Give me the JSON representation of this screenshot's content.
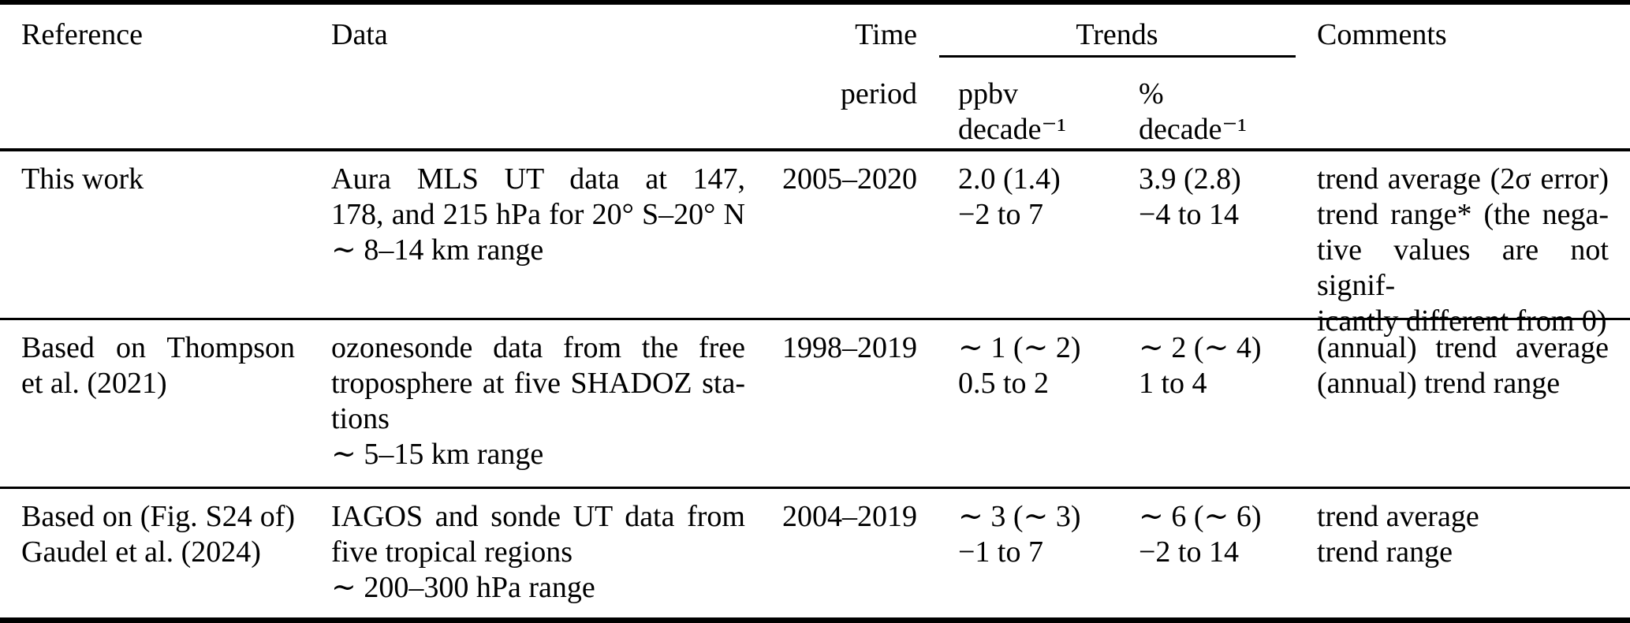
{
  "table": {
    "header": {
      "reference": "Reference",
      "data": "Data",
      "time": [
        "Time",
        "period"
      ],
      "trends": "Trends",
      "unit_ppbv": [
        "ppbv",
        "decade⁻¹"
      ],
      "unit_pct": [
        "%",
        "decade⁻¹"
      ],
      "comments": "Comments"
    },
    "rows": [
      {
        "reference": [
          "This work"
        ],
        "data": [
          "Aura MLS UT data at 147,",
          "178, and 215 hPa for 20° S–20° N",
          "∼ 8–14 km range"
        ],
        "time_period": "2005–2020",
        "trend_ppbv": [
          "2.0 (1.4)",
          "−2 to 7"
        ],
        "trend_pct": [
          "3.9 (2.8)",
          "−4 to 14"
        ],
        "comments": [
          "trend average (2σ error)",
          "trend range* (the nega-",
          "tive values are not signif-",
          "icantly different from 0)"
        ]
      },
      {
        "reference": [
          "Based on Thompson",
          "et al. (2021)"
        ],
        "data": [
          "ozonesonde data from the free",
          "troposphere at five SHADOZ sta-",
          "tions",
          "∼ 5–15 km range"
        ],
        "time_period": "1998–2019",
        "trend_ppbv": [
          "∼ 1 (∼ 2)",
          "0.5 to 2"
        ],
        "trend_pct": [
          "∼ 2 (∼ 4)",
          "1 to 4"
        ],
        "comments": [
          "(annual) trend average",
          "(annual) trend range"
        ]
      },
      {
        "reference": [
          "Based on (Fig. S24 of)",
          "Gaudel et al. (2024)"
        ],
        "data": [
          "IAGOS and sonde UT data from",
          "five tropical regions",
          "∼ 200–300 hPa range"
        ],
        "time_period": "2004–2019",
        "trend_ppbv": [
          "∼ 3 (∼ 3)",
          "−1 to 7"
        ],
        "trend_pct": [
          "∼ 6 (∼ 6)",
          "−2 to 14"
        ],
        "comments": [
          "trend average",
          "trend range"
        ]
      }
    ]
  }
}
